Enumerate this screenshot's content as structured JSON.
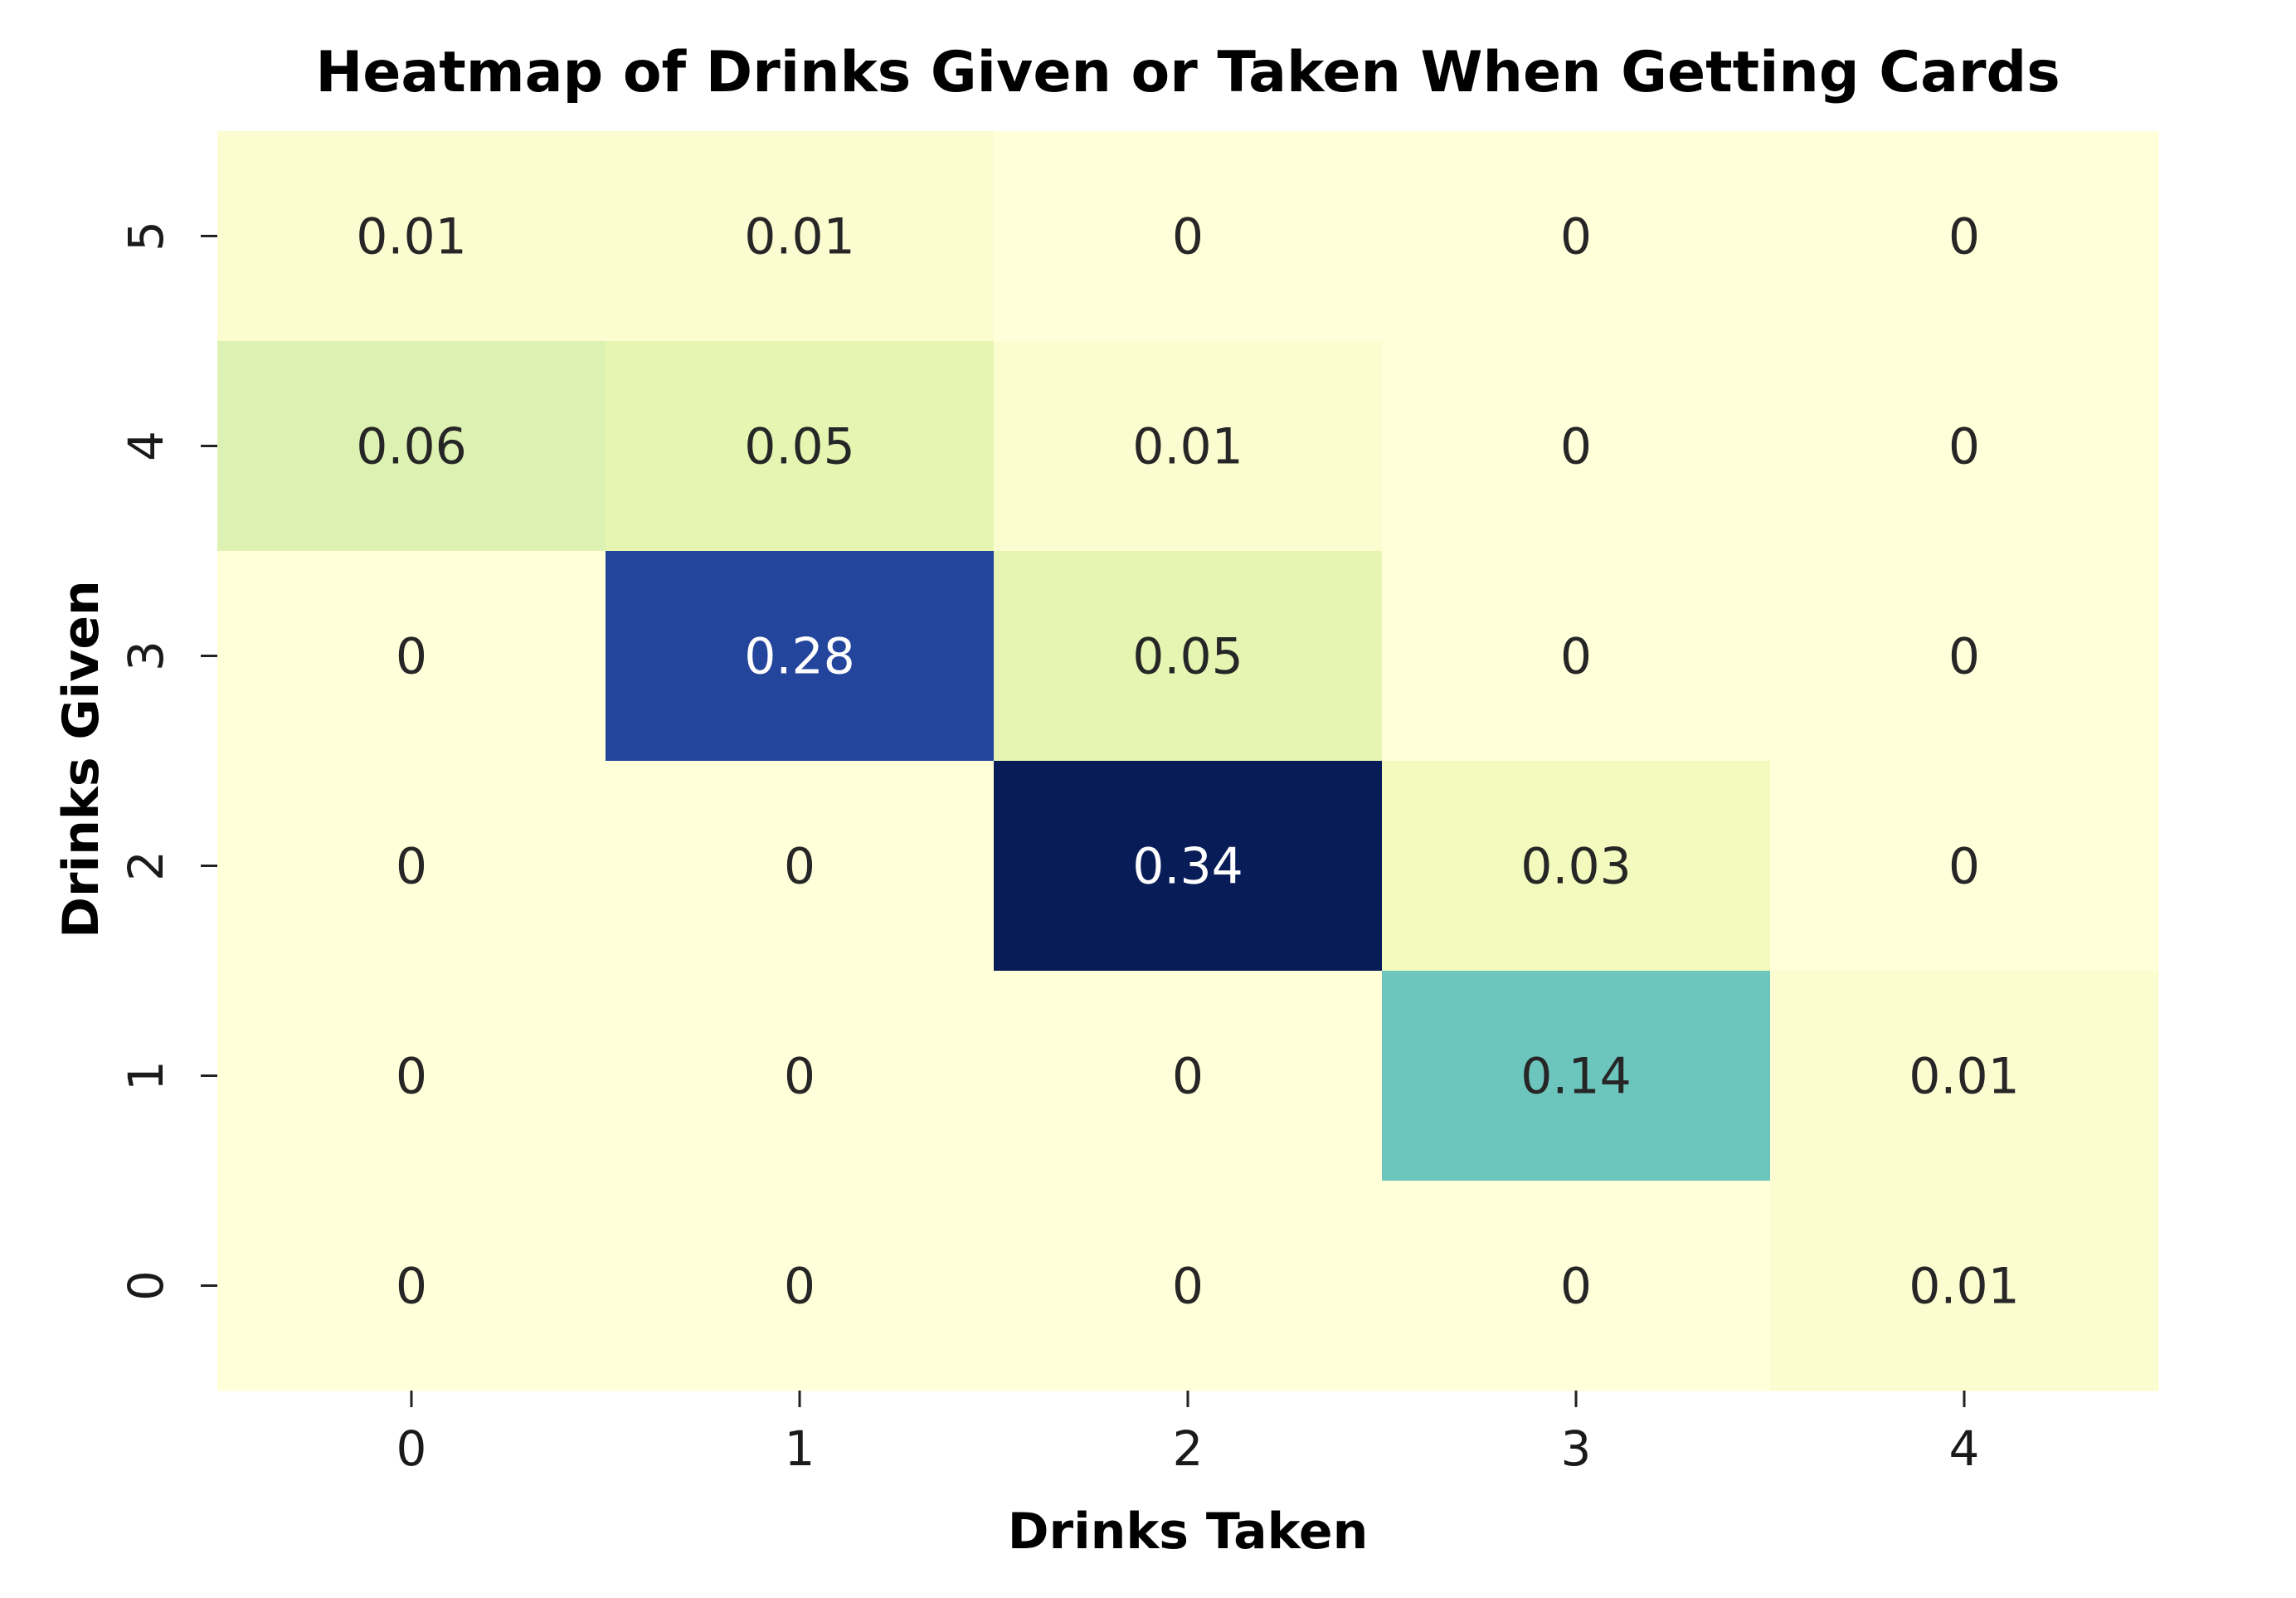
{
  "chart_data": {
    "type": "heatmap",
    "title": "Heatmap of Drinks Given or Taken When Getting Cards",
    "xlabel": "Drinks Taken",
    "ylabel": "Drinks Given",
    "x_categories": [
      "0",
      "1",
      "2",
      "3",
      "4"
    ],
    "y_categories_top_to_bottom": [
      "5",
      "4",
      "3",
      "2",
      "1",
      "0"
    ],
    "values": [
      [
        0.01,
        0.01,
        0,
        0,
        0
      ],
      [
        0.06,
        0.05,
        0.01,
        0,
        0
      ],
      [
        0,
        0.28,
        0.05,
        0,
        0
      ],
      [
        0,
        0,
        0.34,
        0.03,
        0
      ],
      [
        0,
        0,
        0,
        0.14,
        0.01
      ],
      [
        0,
        0,
        0,
        0,
        0.01
      ]
    ],
    "colormap": "YlGnBu",
    "vmin": 0,
    "vmax": 0.34,
    "colorbar": false,
    "grid": false
  }
}
